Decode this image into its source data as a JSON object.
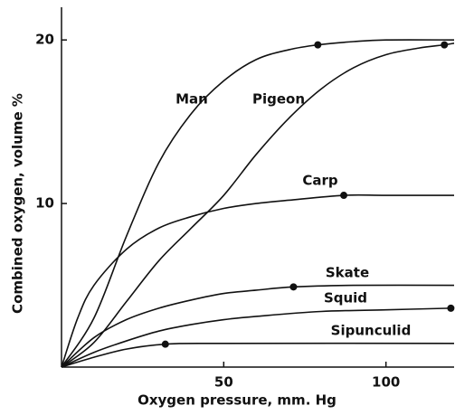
{
  "chart_data": {
    "type": "line",
    "xlabel": "Oxygen pressure, mm. Hg",
    "ylabel": "Combined oxygen, volume %",
    "xlim": [
      0,
      121
    ],
    "ylim": [
      0,
      22
    ],
    "xticks": [
      50,
      100
    ],
    "yticks": [
      10,
      20
    ],
    "series": [
      {
        "name": "Man",
        "color": "#111111",
        "x": [
          0,
          10,
          20,
          30,
          40,
          50,
          60,
          70,
          79,
          90,
          100,
          121
        ],
        "values": [
          0,
          3,
          8,
          12.5,
          15.5,
          17.5,
          18.8,
          19.4,
          19.7,
          19.9,
          20,
          20
        ],
        "marker": {
          "x": 79,
          "y": 19.7
        }
      },
      {
        "name": "Pigeon",
        "color": "#111111",
        "x": [
          0,
          10,
          20,
          30,
          40,
          50,
          60,
          70,
          80,
          90,
          100,
          110,
          118,
          121
        ],
        "values": [
          0,
          1.5,
          4,
          6.5,
          8.5,
          10.5,
          13,
          15.2,
          17,
          18.3,
          19.1,
          19.5,
          19.7,
          19.8
        ],
        "marker": {
          "x": 118,
          "y": 19.7
        }
      },
      {
        "name": "Carp",
        "color": "#111111",
        "x": [
          0,
          5,
          10,
          20,
          30,
          40,
          50,
          60,
          70,
          87,
          100,
          121
        ],
        "values": [
          0,
          3,
          5,
          7.2,
          8.5,
          9.2,
          9.7,
          10,
          10.2,
          10.5,
          10.5,
          10.5
        ],
        "marker": {
          "x": 87,
          "y": 10.5
        }
      },
      {
        "name": "Skate",
        "color": "#111111",
        "x": [
          0,
          10,
          20,
          30,
          40,
          50,
          60,
          71.5,
          90,
          121
        ],
        "values": [
          0,
          1.8,
          2.9,
          3.6,
          4.1,
          4.5,
          4.7,
          4.9,
          5,
          5
        ],
        "marker": {
          "x": 71.5,
          "y": 4.9
        }
      },
      {
        "name": "Squid",
        "color": "#111111",
        "x": [
          0,
          10,
          20,
          30,
          40,
          50,
          60,
          80,
          100,
          120
        ],
        "values": [
          0,
          0.9,
          1.6,
          2.2,
          2.6,
          2.9,
          3.1,
          3.4,
          3.5,
          3.6
        ],
        "marker": {
          "x": 120,
          "y": 3.6
        }
      },
      {
        "name": "Sipunculid",
        "color": "#111111",
        "x": [
          0,
          10,
          20,
          32,
          50,
          121
        ],
        "values": [
          0,
          0.6,
          1.1,
          1.4,
          1.45,
          1.45
        ],
        "marker": {
          "x": 32,
          "y": 1.4
        }
      }
    ]
  }
}
